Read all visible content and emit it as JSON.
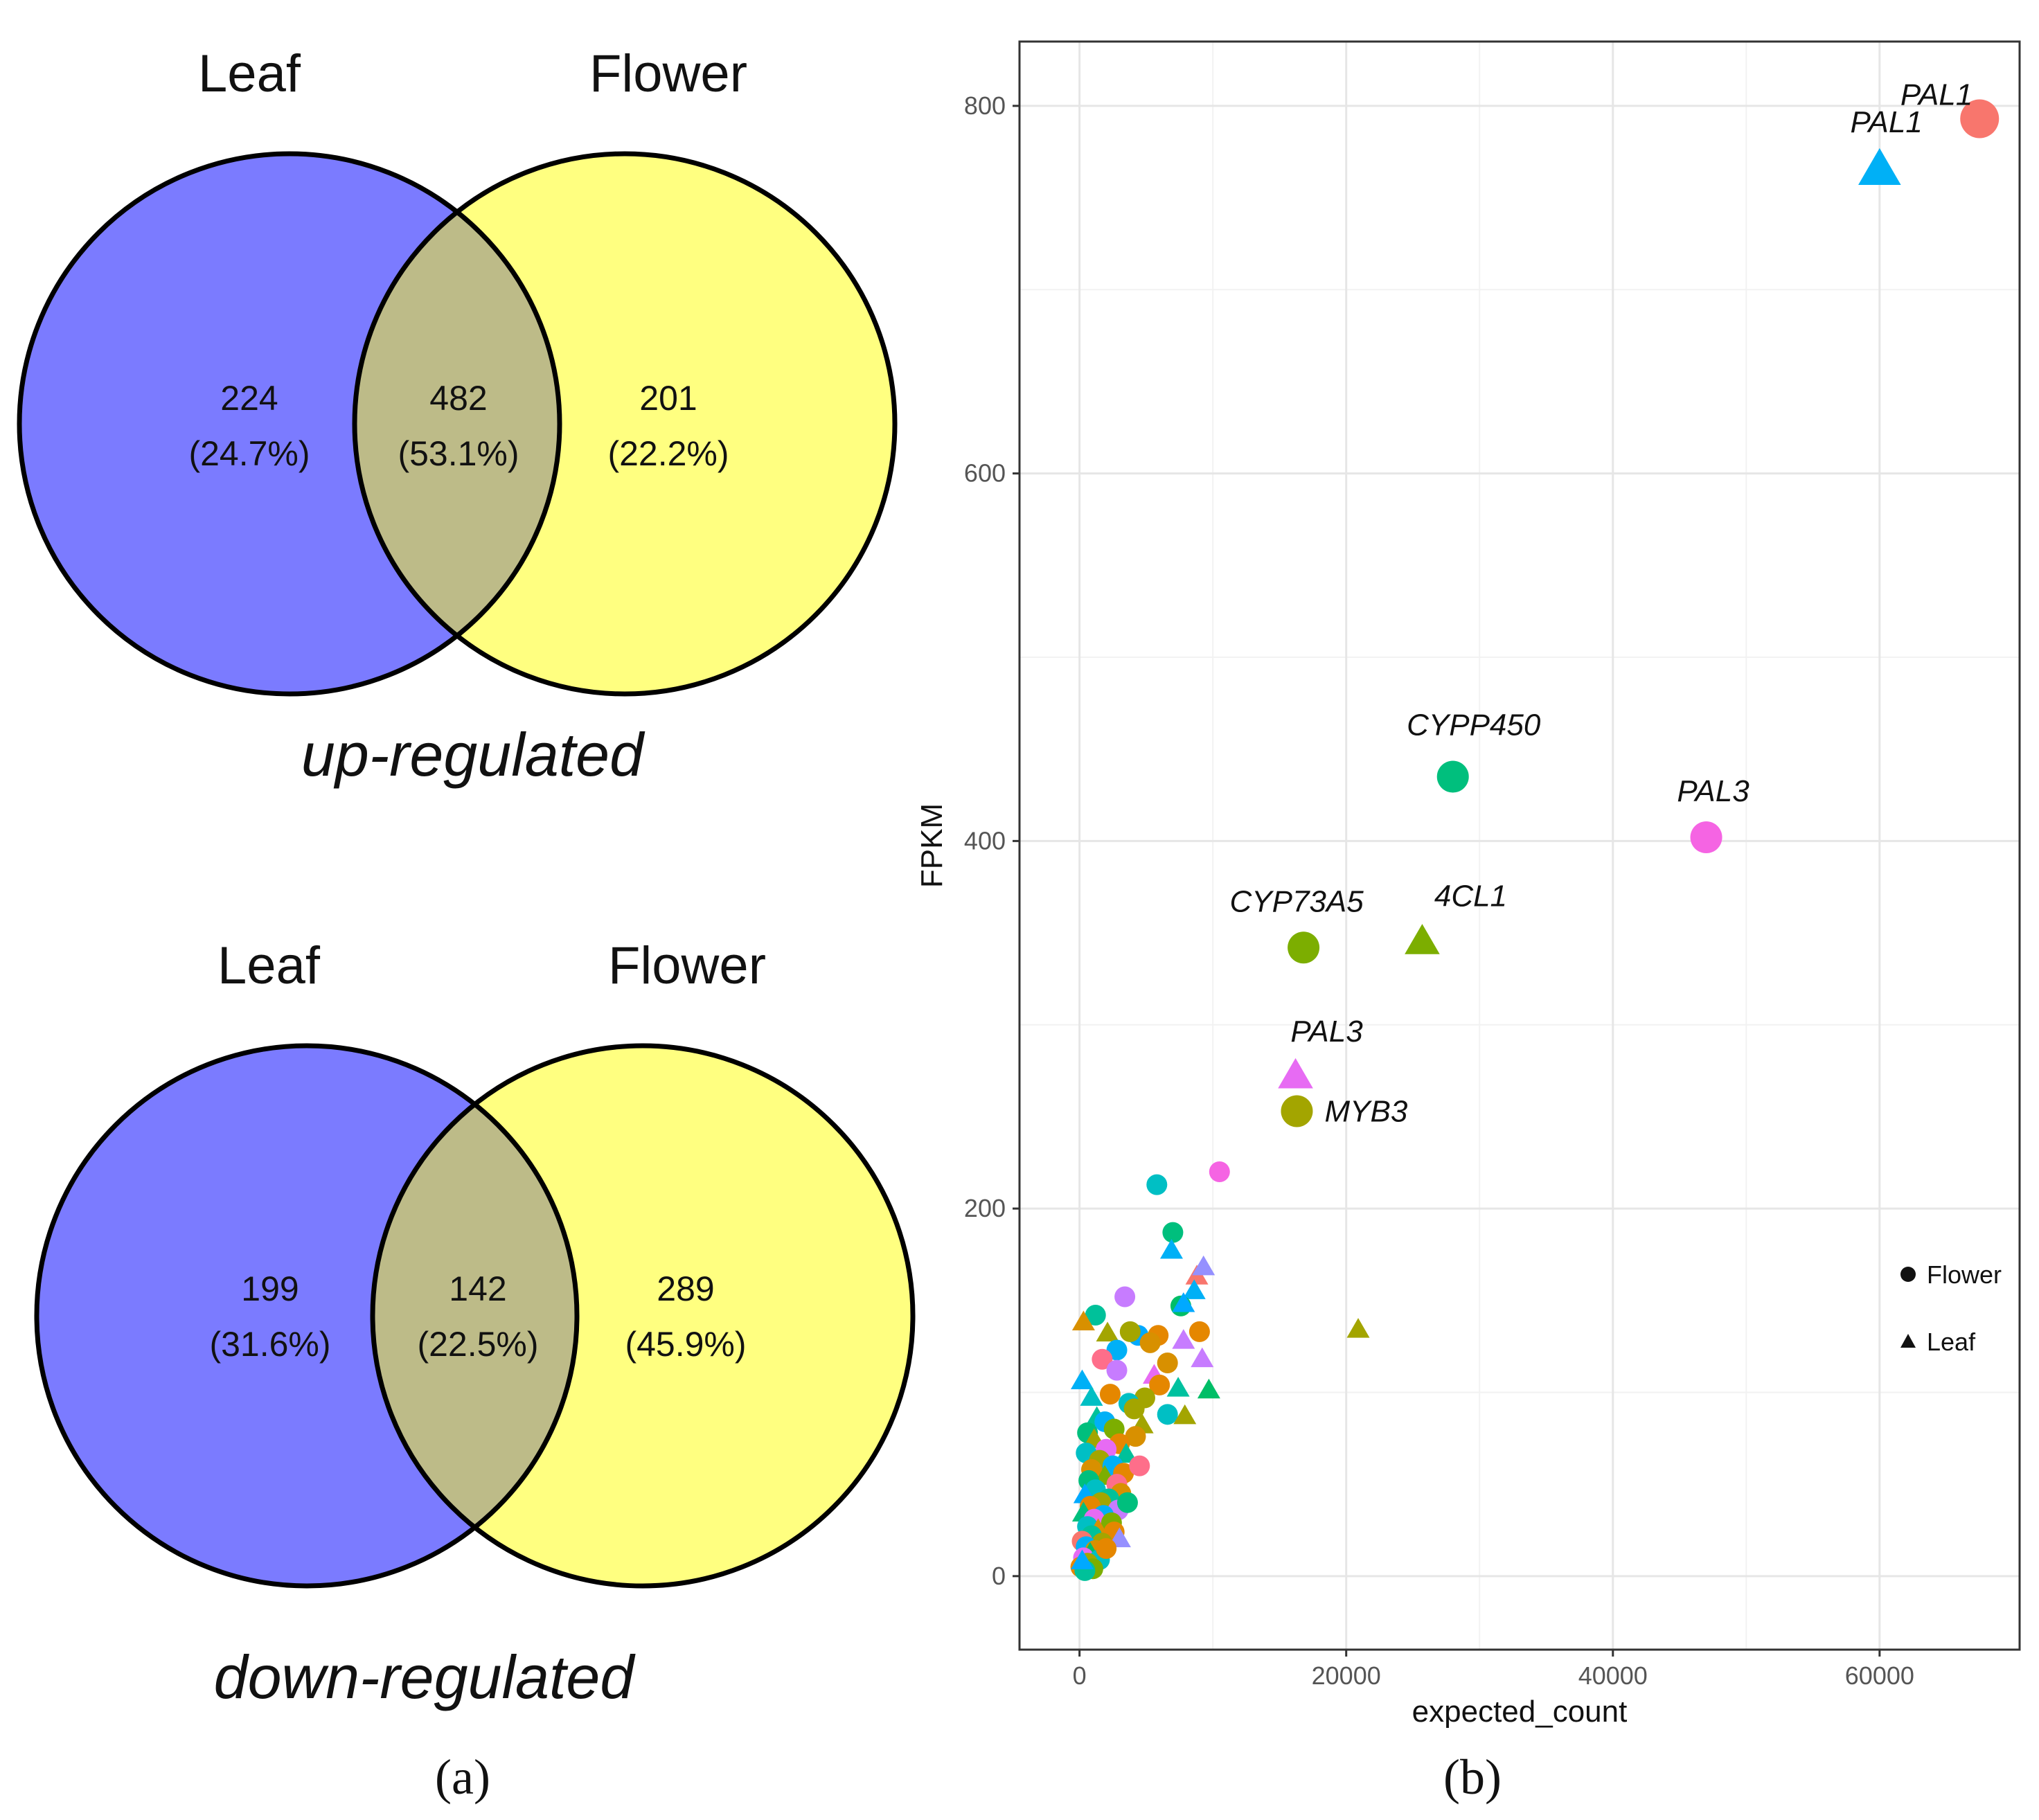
{
  "venn": {
    "up": {
      "title_left": "Leaf",
      "title_right": "Flower",
      "left_count": "224",
      "left_pct": "(24.7%)",
      "overlap_count": "482",
      "overlap_pct": "(53.1%)",
      "right_count": "201",
      "right_pct": "(22.2%)",
      "caption": "up-regulated"
    },
    "down": {
      "title_left": "Leaf",
      "title_right": "Flower",
      "left_count": "199",
      "left_pct": "(31.6%)",
      "overlap_count": "142",
      "overlap_pct": "(22.5%)",
      "right_count": "289",
      "right_pct": "(45.9%)",
      "caption": "down-regulated"
    },
    "colors": {
      "leaf": "#7b7bff",
      "flower": "#ffff80",
      "overlap": "#bdbb88"
    }
  },
  "panel_labels": {
    "a": "(a)",
    "b": "(b)"
  },
  "chart_data": {
    "type": "scatter",
    "xlabel": "expected_count",
    "ylabel": "FPKM",
    "xlim": [
      -4500,
      70500
    ],
    "ylim": [
      -40,
      835
    ],
    "xticks": [
      0,
      20000,
      40000,
      60000
    ],
    "xtick_labels": [
      "0",
      "20000",
      "40000",
      "60000"
    ],
    "yticks": [
      0,
      200,
      400,
      600,
      800
    ],
    "ytick_labels": [
      "0",
      "200",
      "400",
      "600",
      "800"
    ],
    "grid": true,
    "legend": {
      "placement": "right",
      "entries": [
        {
          "label": "Flower",
          "shape": "circle"
        },
        {
          "label": "Leaf",
          "shape": "triangle"
        }
      ]
    },
    "labeled_points": [
      {
        "gene": "PAL1",
        "x": 67500,
        "y": 793,
        "shape": "circle",
        "color": "#f8766d",
        "size": "large"
      },
      {
        "gene": "PAL1",
        "x": 60000,
        "y": 765,
        "shape": "triangle",
        "color": "#00b0f6",
        "size": "large"
      },
      {
        "gene": "CYPP450",
        "x": 28000,
        "y": 435,
        "shape": "circle",
        "color": "#00bf7d",
        "size": "medium"
      },
      {
        "gene": "PAL3",
        "x": 47000,
        "y": 402,
        "shape": "circle",
        "color": "#f564e3",
        "size": "medium"
      },
      {
        "gene": "CYP73A5",
        "x": 16800,
        "y": 342,
        "shape": "circle",
        "color": "#7cae00",
        "size": "medium"
      },
      {
        "gene": "4CL1",
        "x": 25700,
        "y": 345,
        "shape": "triangle",
        "color": "#7cae00",
        "size": "medium"
      },
      {
        "gene": "PAL3",
        "x": 16200,
        "y": 272,
        "shape": "triangle",
        "color": "#e76bf3",
        "size": "medium"
      },
      {
        "gene": "MYB3",
        "x": 16300,
        "y": 253,
        "shape": "circle",
        "color": "#a3a500",
        "size": "medium"
      }
    ],
    "points": [
      {
        "x": 5800,
        "y": 213,
        "shape": "circle",
        "color": "#00bfc4"
      },
      {
        "x": 10500,
        "y": 220,
        "shape": "circle",
        "color": "#f564e3"
      },
      {
        "x": 7000,
        "y": 187,
        "shape": "circle",
        "color": "#00bf7d"
      },
      {
        "x": 6900,
        "y": 177,
        "shape": "triangle",
        "color": "#00b0f6"
      },
      {
        "x": 8800,
        "y": 163,
        "shape": "triangle",
        "color": "#f8766d"
      },
      {
        "x": 9300,
        "y": 168,
        "shape": "triangle",
        "color": "#9590ff"
      },
      {
        "x": 8600,
        "y": 155,
        "shape": "triangle",
        "color": "#00b0f6"
      },
      {
        "x": 3400,
        "y": 152,
        "shape": "circle",
        "color": "#c77cff"
      },
      {
        "x": 7600,
        "y": 147,
        "shape": "circle",
        "color": "#00be67"
      },
      {
        "x": 7800,
        "y": 148,
        "shape": "triangle",
        "color": "#00a9ff"
      },
      {
        "x": 1200,
        "y": 142,
        "shape": "circle",
        "color": "#00c19a"
      },
      {
        "x": 300,
        "y": 138,
        "shape": "triangle",
        "color": "#d89000"
      },
      {
        "x": 2100,
        "y": 132,
        "shape": "triangle",
        "color": "#a3a500"
      },
      {
        "x": 20900,
        "y": 134,
        "shape": "triangle",
        "color": "#a3a500"
      },
      {
        "x": 9000,
        "y": 133,
        "shape": "circle",
        "color": "#e58700"
      },
      {
        "x": 7800,
        "y": 128,
        "shape": "triangle",
        "color": "#c77cff"
      },
      {
        "x": 5900,
        "y": 131,
        "shape": "circle",
        "color": "#e58700"
      },
      {
        "x": 4400,
        "y": 131,
        "shape": "circle",
        "color": "#00a9ff"
      },
      {
        "x": 3800,
        "y": 133,
        "shape": "circle",
        "color": "#a3a500"
      },
      {
        "x": 2800,
        "y": 123,
        "shape": "circle",
        "color": "#00b0f6"
      },
      {
        "x": 5300,
        "y": 127,
        "shape": "circle",
        "color": "#d89000"
      },
      {
        "x": 1700,
        "y": 118,
        "shape": "circle",
        "color": "#fe6e8a"
      },
      {
        "x": 9200,
        "y": 118,
        "shape": "triangle",
        "color": "#c77cff"
      },
      {
        "x": 6600,
        "y": 116,
        "shape": "circle",
        "color": "#d89000"
      },
      {
        "x": 2800,
        "y": 112,
        "shape": "circle",
        "color": "#c77cff"
      },
      {
        "x": 200,
        "y": 106,
        "shape": "triangle",
        "color": "#00b0f6"
      },
      {
        "x": 5600,
        "y": 109,
        "shape": "triangle",
        "color": "#e76bf3"
      },
      {
        "x": 6000,
        "y": 104,
        "shape": "circle",
        "color": "#e58700"
      },
      {
        "x": 7400,
        "y": 102,
        "shape": "triangle",
        "color": "#00c19f"
      },
      {
        "x": 9700,
        "y": 101,
        "shape": "triangle",
        "color": "#00be67"
      },
      {
        "x": 2300,
        "y": 99,
        "shape": "circle",
        "color": "#e58700"
      },
      {
        "x": 900,
        "y": 97,
        "shape": "triangle",
        "color": "#00bfc4"
      },
      {
        "x": 4900,
        "y": 97,
        "shape": "circle",
        "color": "#a3a500"
      },
      {
        "x": 3700,
        "y": 94,
        "shape": "circle",
        "color": "#00bfc4"
      },
      {
        "x": 4100,
        "y": 91,
        "shape": "circle",
        "color": "#a3a500"
      },
      {
        "x": 6600,
        "y": 88,
        "shape": "circle",
        "color": "#00bfc4"
      },
      {
        "x": 7900,
        "y": 87,
        "shape": "triangle",
        "color": "#a3a500"
      },
      {
        "x": 1300,
        "y": 86,
        "shape": "triangle",
        "color": "#00c19a"
      },
      {
        "x": 1900,
        "y": 84,
        "shape": "circle",
        "color": "#00b0f6"
      },
      {
        "x": 4700,
        "y": 82,
        "shape": "triangle",
        "color": "#a3a500"
      },
      {
        "x": 2600,
        "y": 80,
        "shape": "circle",
        "color": "#7cae00"
      },
      {
        "x": 600,
        "y": 78,
        "shape": "circle",
        "color": "#00bf7d"
      },
      {
        "x": 4200,
        "y": 76,
        "shape": "circle",
        "color": "#d89000"
      },
      {
        "x": 1100,
        "y": 74,
        "shape": "triangle",
        "color": "#a3a500"
      },
      {
        "x": 3000,
        "y": 72,
        "shape": "circle",
        "color": "#e58700"
      },
      {
        "x": 2000,
        "y": 69,
        "shape": "circle",
        "color": "#e76bf3"
      },
      {
        "x": 500,
        "y": 67,
        "shape": "circle",
        "color": "#00bfc4"
      },
      {
        "x": 3500,
        "y": 66,
        "shape": "triangle",
        "color": "#00c19a"
      },
      {
        "x": 1500,
        "y": 63,
        "shape": "circle",
        "color": "#a3a500"
      },
      {
        "x": 2500,
        "y": 60,
        "shape": "circle",
        "color": "#00b0f6"
      },
      {
        "x": 900,
        "y": 58,
        "shape": "circle",
        "color": "#d89000"
      },
      {
        "x": 3300,
        "y": 56,
        "shape": "circle",
        "color": "#e58700"
      },
      {
        "x": 1900,
        "y": 54,
        "shape": "triangle",
        "color": "#7cae00"
      },
      {
        "x": 700,
        "y": 52,
        "shape": "circle",
        "color": "#00bf7d"
      },
      {
        "x": 2800,
        "y": 50,
        "shape": "circle",
        "color": "#fe6e8a"
      },
      {
        "x": 1200,
        "y": 47,
        "shape": "circle",
        "color": "#00bfc4"
      },
      {
        "x": 3100,
        "y": 45,
        "shape": "circle",
        "color": "#d89000"
      },
      {
        "x": 400,
        "y": 44,
        "shape": "triangle",
        "color": "#00a9ff"
      },
      {
        "x": 2200,
        "y": 42,
        "shape": "circle",
        "color": "#00c19a"
      },
      {
        "x": 1600,
        "y": 40,
        "shape": "circle",
        "color": "#a3a500"
      },
      {
        "x": 800,
        "y": 38,
        "shape": "circle",
        "color": "#e58700"
      },
      {
        "x": 2900,
        "y": 36,
        "shape": "circle",
        "color": "#c77cff"
      },
      {
        "x": 300,
        "y": 34,
        "shape": "triangle",
        "color": "#00bf7d"
      },
      {
        "x": 1800,
        "y": 33,
        "shape": "circle",
        "color": "#00b0f6"
      },
      {
        "x": 1100,
        "y": 31,
        "shape": "circle",
        "color": "#e76bf3"
      },
      {
        "x": 2400,
        "y": 29,
        "shape": "circle",
        "color": "#7cae00"
      },
      {
        "x": 600,
        "y": 27,
        "shape": "circle",
        "color": "#00bfc4"
      },
      {
        "x": 1400,
        "y": 25,
        "shape": "triangle",
        "color": "#d89000"
      },
      {
        "x": 2600,
        "y": 24,
        "shape": "circle",
        "color": "#e58700"
      },
      {
        "x": 900,
        "y": 22,
        "shape": "circle",
        "color": "#00c19a"
      },
      {
        "x": 3000,
        "y": 20,
        "shape": "triangle",
        "color": "#9590ff"
      },
      {
        "x": 200,
        "y": 19,
        "shape": "circle",
        "color": "#f8766d"
      },
      {
        "x": 1700,
        "y": 18,
        "shape": "circle",
        "color": "#a3a500"
      },
      {
        "x": 500,
        "y": 16,
        "shape": "circle",
        "color": "#00b0f6"
      },
      {
        "x": 1200,
        "y": 14,
        "shape": "circle",
        "color": "#d89000"
      },
      {
        "x": 800,
        "y": 12,
        "shape": "triangle",
        "color": "#00be67"
      },
      {
        "x": 300,
        "y": 10,
        "shape": "circle",
        "color": "#e76bf3"
      },
      {
        "x": 1500,
        "y": 9,
        "shape": "circle",
        "color": "#00bfc4"
      },
      {
        "x": 600,
        "y": 7,
        "shape": "circle",
        "color": "#a3a500"
      },
      {
        "x": 100,
        "y": 5,
        "shape": "circle",
        "color": "#e58700"
      },
      {
        "x": 1000,
        "y": 4,
        "shape": "circle",
        "color": "#7cae00"
      },
      {
        "x": 400,
        "y": 3,
        "shape": "circle",
        "color": "#00c19a"
      },
      {
        "x": 200,
        "y": 8,
        "shape": "triangle",
        "color": "#00a9ff"
      },
      {
        "x": 2000,
        "y": 15,
        "shape": "circle",
        "color": "#e58700"
      },
      {
        "x": 3600,
        "y": 40,
        "shape": "circle",
        "color": "#00bf7d"
      },
      {
        "x": 4500,
        "y": 60,
        "shape": "circle",
        "color": "#fe6e8a"
      }
    ]
  }
}
